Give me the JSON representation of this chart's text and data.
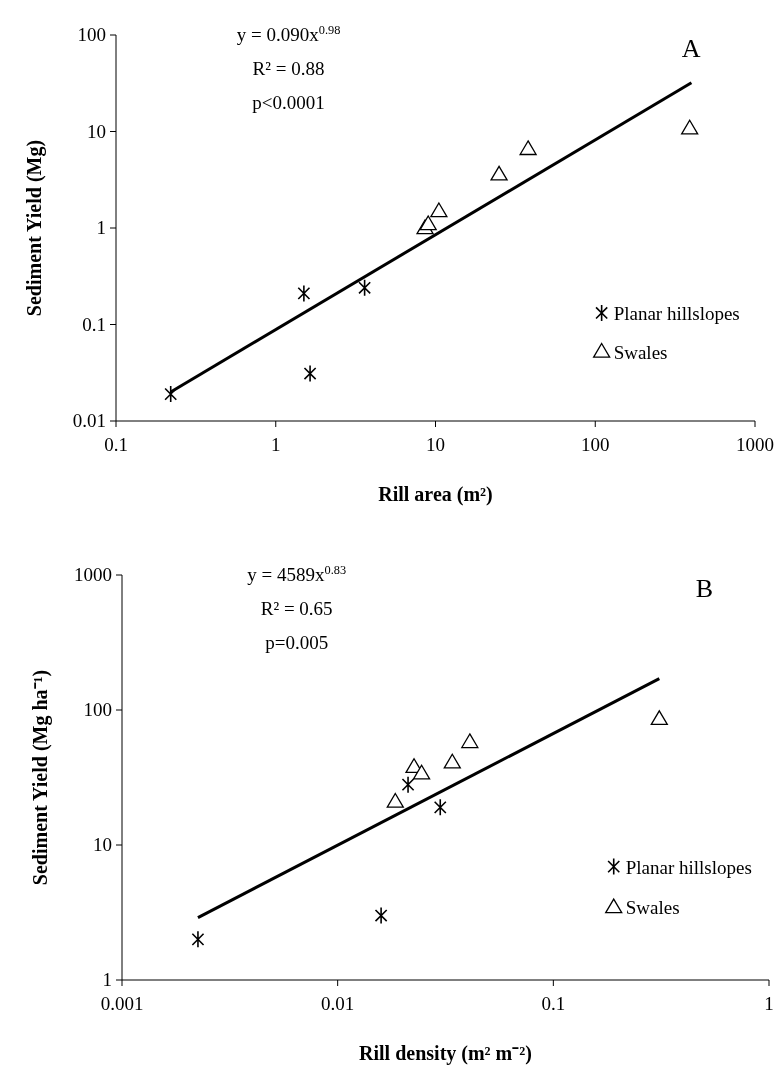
{
  "chart_data": [
    {
      "type": "scatter",
      "title": "A",
      "xlabel": "Rill area (m²)",
      "ylabel": "Sediment Yield (Mg)",
      "annotations": [
        "y = 0.090x$^{0.98}$",
        "R² = 0.88",
        "p<0.0001"
      ],
      "log": "xy",
      "xlim": [
        0.1,
        1000
      ],
      "ylim": [
        0.01,
        100
      ],
      "xticks": [
        0.1,
        1,
        10,
        100,
        1000
      ],
      "yticks": [
        0.01,
        0.1,
        1,
        10,
        100
      ],
      "legend": "bottom right",
      "series": [
        {
          "name": "Planar hillslopes",
          "color": "#000000",
          "marker": "cross",
          "x": [
            0.22,
            1.5,
            1.64,
            3.6
          ],
          "values": [
            0.019,
            0.21,
            0.031,
            0.24
          ]
        },
        {
          "name": "Swales",
          "color": "#000000",
          "marker": "triangle",
          "x": [
            8.6,
            9.0,
            10.5,
            25,
            38,
            390
          ],
          "values": [
            1.0,
            1.1,
            1.5,
            3.6,
            6.6,
            10.8
          ]
        },
        {
          "type": "line",
          "color": "#000000",
          "marker": "none",
          "x": [
            0.22,
            400
          ],
          "values": [
            0.02,
            32
          ]
        }
      ]
    },
    {
      "type": "scatter",
      "title": "B",
      "xlabel": "Rill density (m² m⁻²)",
      "ylabel": "Sediment Yield (Mg ha⁻¹)",
      "annotations": [
        "y = 4589x$^{0.83}$",
        "R² = 0.65",
        "p=0.005"
      ],
      "log": "xy",
      "xlim": [
        0.001,
        1
      ],
      "ylim": [
        1,
        1000
      ],
      "xticks": [
        0.001,
        0.01,
        0.1,
        1
      ],
      "yticks": [
        1,
        10,
        100,
        1000
      ],
      "legend": "bottom right",
      "series": [
        {
          "name": "Planar hillslopes",
          "color": "#000000",
          "marker": "cross",
          "x": [
            0.00225,
            0.0159,
            0.0212,
            0.0299
          ],
          "values": [
            2,
            3,
            28,
            19
          ]
        },
        {
          "name": "Swales",
          "color": "#000000",
          "marker": "triangle",
          "x": [
            0.0185,
            0.0226,
            0.0245,
            0.034,
            0.041,
            0.31
          ],
          "values": [
            21,
            38,
            34,
            41,
            58,
            86
          ]
        },
        {
          "type": "line",
          "color": "#000000",
          "marker": "none",
          "x": [
            0.00225,
            0.31
          ],
          "values": [
            2.9,
            171
          ]
        }
      ]
    }
  ]
}
